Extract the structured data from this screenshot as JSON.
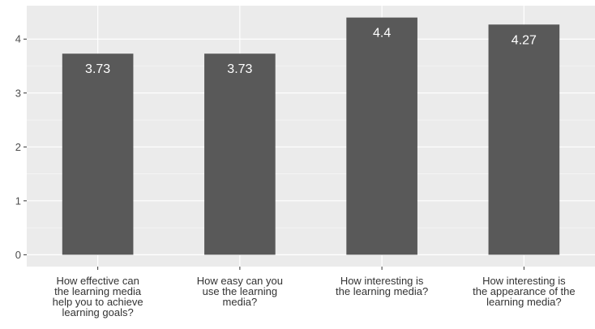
{
  "chart_data": {
    "type": "bar",
    "categories": [
      [
        "How effective can",
        "the learning media",
        "help you to achieve",
        "learning goals?"
      ],
      [
        "How easy can you",
        "use the learning",
        "media?"
      ],
      [
        "How interesting is",
        "the learning media?"
      ],
      [
        "How interesting is",
        "the appearance of the",
        "learning media?"
      ]
    ],
    "values": [
      3.73,
      3.73,
      4.4,
      4.27
    ],
    "data_labels": [
      "3.73",
      "3.73",
      "4.4",
      "4.27"
    ],
    "yticks": [
      0,
      1,
      2,
      3,
      4
    ],
    "ylim": [
      -0.22,
      4.62
    ],
    "grid": true,
    "colors": {
      "panel": "#ebebeb",
      "grid_major": "#ffffff",
      "bar": "#595959",
      "data_label": "#ffffff",
      "tick_mark": "#333333"
    }
  }
}
